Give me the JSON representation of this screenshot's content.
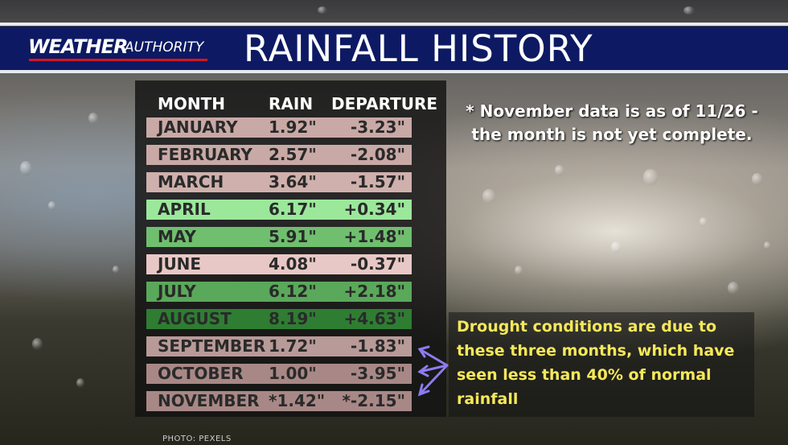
{
  "header": {
    "logo_weather": "WEATHER",
    "logo_authority": "AUTHORITY",
    "title": "RAINFALL HISTORY"
  },
  "table": {
    "headers": {
      "month": "MONTH",
      "rain": "RAIN",
      "departure": "DEPARTURE"
    },
    "rows": [
      {
        "month": "JANUARY",
        "rain": "1.92\"",
        "departure": "-3.23\"",
        "color": "#c9a9a6"
      },
      {
        "month": "FEBRUARY",
        "rain": "2.57\"",
        "departure": "-2.08\"",
        "color": "#c9a9a6"
      },
      {
        "month": "MARCH",
        "rain": "3.64\"",
        "departure": "-1.57\"",
        "color": "#cfb0ad"
      },
      {
        "month": "APRIL",
        "rain": "6.17\"",
        "departure": "+0.34\"",
        "color": "#9be89b"
      },
      {
        "month": "MAY",
        "rain": "5.91\"",
        "departure": "+1.48\"",
        "color": "#6fbf6f"
      },
      {
        "month": "JUNE",
        "rain": "4.08\"",
        "departure": "-0.37\"",
        "color": "#e8c8c6"
      },
      {
        "month": "JULY",
        "rain": "6.12\"",
        "departure": "+2.18\"",
        "color": "#5aa85a"
      },
      {
        "month": "AUGUST",
        "rain": "8.19\"",
        "departure": "+4.63\"",
        "color": "#2e7d32"
      },
      {
        "month": "SEPTEMBER",
        "rain": "1.72\"",
        "departure": "-1.83\"",
        "color": "#b89a98"
      },
      {
        "month": "OCTOBER",
        "rain": "1.00\"",
        "departure": "-3.95\"",
        "color": "#a88886"
      },
      {
        "month": "NOVEMBER",
        "rain": "*1.42\"",
        "departure": "*-2.15\"",
        "color": "#a88886"
      }
    ]
  },
  "note": "* November data is as of 11/26 -  the month is not yet complete.",
  "drought_text": "Drought conditions are due to these three months, which have seen less than 40% of normal rainfall",
  "photo_credit": "PHOTO: PEXELS",
  "colors": {
    "header_bg": "#0d1a63",
    "logo_red": "#d8141e",
    "drought_text": "#f5e85a",
    "arrow": "#8c7cf0"
  }
}
